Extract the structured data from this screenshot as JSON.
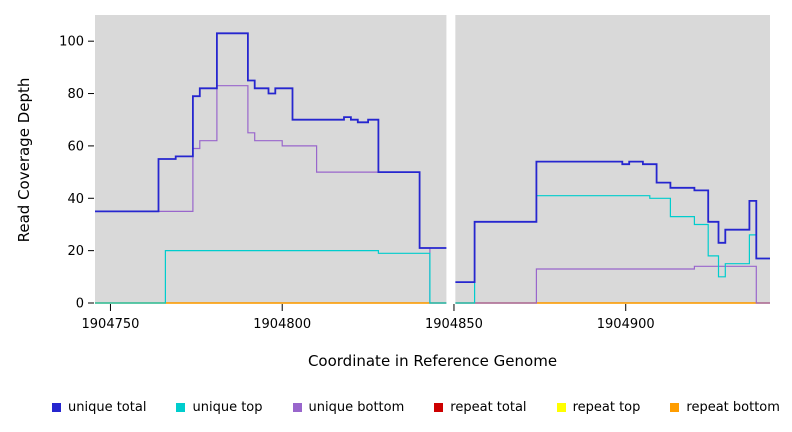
{
  "chart_data": {
    "type": "line",
    "step": true,
    "title": "",
    "xlabel": "Coordinate in Reference Genome",
    "ylabel": "Read Coverage Depth",
    "x_range": [
      1904745.5,
      1904942
    ],
    "y_range": [
      0,
      110
    ],
    "x_ticks": [
      1904750,
      1904800,
      1904850,
      1904900
    ],
    "y_ticks": [
      0,
      20,
      40,
      60,
      80,
      100
    ],
    "panel_bg": "#d9d9d9",
    "gap_x": [
      1904847.8,
      1904850.4
    ],
    "grid": false,
    "legend_position": "bottom",
    "series": [
      {
        "name": "repeat total",
        "color": "#cd0000",
        "points": [
          [
            1904745.5,
            0
          ],
          [
            1904942,
            0
          ]
        ]
      },
      {
        "name": "repeat top",
        "color": "#ffff00",
        "points": [
          [
            1904745.5,
            0
          ],
          [
            1904942,
            0
          ]
        ]
      },
      {
        "name": "repeat bottom",
        "color": "#ff9d00",
        "points": [
          [
            1904745.5,
            0
          ],
          [
            1904942,
            0
          ]
        ]
      },
      {
        "name": "unique bottom",
        "color": "#9966cc",
        "points": [
          [
            1904745.5,
            35
          ],
          [
            1904774,
            59
          ],
          [
            1904776,
            62
          ],
          [
            1904781,
            83
          ],
          [
            1904790,
            65
          ],
          [
            1904792,
            62
          ],
          [
            1904800,
            60
          ],
          [
            1904810,
            50
          ],
          [
            1904840,
            21
          ],
          [
            1904843,
            0
          ],
          [
            1904874,
            13
          ],
          [
            1904920,
            14
          ],
          [
            1904938,
            0
          ]
        ]
      },
      {
        "name": "unique top",
        "color": "#00cdcd",
        "points": [
          [
            1904745.5,
            0
          ],
          [
            1904766,
            20
          ],
          [
            1904828,
            19
          ],
          [
            1904843,
            0
          ],
          [
            1904856,
            31
          ],
          [
            1904874,
            41
          ],
          [
            1904907,
            40
          ],
          [
            1904913,
            33
          ],
          [
            1904920,
            30
          ],
          [
            1904924,
            18
          ],
          [
            1904927,
            10
          ],
          [
            1904929,
            15
          ],
          [
            1904936,
            26
          ],
          [
            1904938,
            17
          ]
        ]
      },
      {
        "name": "unique total",
        "color": "#2626cf",
        "points": [
          [
            1904745.5,
            35
          ],
          [
            1904764,
            55
          ],
          [
            1904769,
            56
          ],
          [
            1904774,
            79
          ],
          [
            1904776,
            82
          ],
          [
            1904781,
            103
          ],
          [
            1904790,
            85
          ],
          [
            1904792,
            82
          ],
          [
            1904796,
            80
          ],
          [
            1904798,
            82
          ],
          [
            1904803,
            70
          ],
          [
            1904818,
            71
          ],
          [
            1904820,
            70
          ],
          [
            1904822,
            69
          ],
          [
            1904825,
            70
          ],
          [
            1904828,
            50
          ],
          [
            1904840,
            21
          ],
          [
            1904850,
            8
          ],
          [
            1904856,
            31
          ],
          [
            1904874,
            54
          ],
          [
            1904899,
            53
          ],
          [
            1904901,
            54
          ],
          [
            1904905,
            53
          ],
          [
            1904909,
            46
          ],
          [
            1904913,
            44
          ],
          [
            1904920,
            43
          ],
          [
            1904924,
            31
          ],
          [
            1904927,
            23
          ],
          [
            1904929,
            28
          ],
          [
            1904936,
            39
          ],
          [
            1904938,
            17
          ]
        ]
      }
    ],
    "legend": [
      {
        "label": "unique total",
        "color": "#2626cf"
      },
      {
        "label": "unique top",
        "color": "#00cdcd"
      },
      {
        "label": "unique bottom",
        "color": "#9966cc"
      },
      {
        "label": "repeat total",
        "color": "#cd0000"
      },
      {
        "label": "repeat top",
        "color": "#ffff00"
      },
      {
        "label": "repeat bottom",
        "color": "#ff9d00"
      }
    ]
  }
}
